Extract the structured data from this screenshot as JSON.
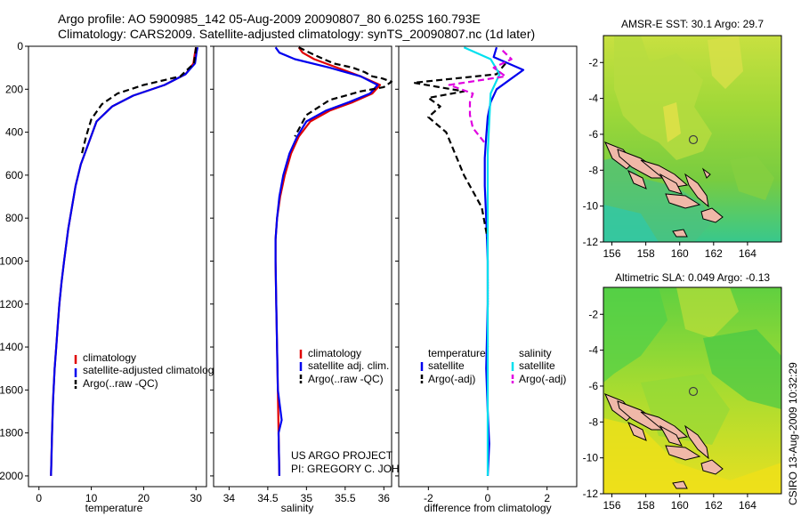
{
  "header": {
    "line1": "Argo profile: AO 5900985_142 05-Aug-2009 20090807_80 6.025S 160.793E",
    "line2": "Climatology: CARS2009. Satellite-adjusted climatology: synTS_20090807.nc (1d later)"
  },
  "footer": {
    "project": "US ARGO PROJECT",
    "pi": "PI: GREGORY C. JOHNSON",
    "credit": "CSIRO 13-Aug-2009 10:32:29"
  },
  "colors": {
    "climatology": "#e00000",
    "satellite": "#0000ee",
    "argo": "#000000",
    "satellite_salinity": "#00e0ee",
    "argo_salinity": "#e000e0",
    "land": "#f0b8a8",
    "marker": "#606060"
  },
  "chart_data": [
    {
      "id": "temperature",
      "type": "line",
      "xlabel": "temperature",
      "xlim": [
        -2,
        32
      ],
      "xticks": [
        0,
        10,
        20,
        30
      ],
      "ylim": [
        2050,
        0
      ],
      "yticks": [
        0,
        200,
        400,
        600,
        800,
        1000,
        1200,
        1400,
        1600,
        1800,
        2000
      ],
      "legend": {
        "placement": "lower-left",
        "entries": [
          "climatology",
          "satellite-adjusted climatology",
          "Argo(..raw -QC)"
        ]
      },
      "series": [
        {
          "name": "climatology",
          "style": "solid",
          "color": "#e00000",
          "x": [
            30,
            29.8,
            29.5,
            28,
            24,
            18,
            14,
            11,
            9.5,
            8,
            7,
            6.3,
            5.6,
            4.8,
            4.3,
            3.9,
            3.6,
            3.3,
            3.0,
            2.7,
            2.5,
            2.3
          ],
          "y": [
            5,
            30,
            80,
            130,
            180,
            230,
            280,
            350,
            450,
            550,
            650,
            750,
            850,
            1000,
            1100,
            1200,
            1300,
            1400,
            1500,
            1650,
            1800,
            2000
          ]
        },
        {
          "name": "satellite-adjusted climatology",
          "style": "solid",
          "color": "#0000ee",
          "x": [
            30.3,
            30.1,
            29.8,
            28,
            24,
            18,
            14,
            11,
            9.5,
            8,
            7,
            6.3,
            5.6,
            4.8,
            4.3,
            3.9,
            3.6,
            3.3,
            3.0,
            2.7,
            2.5,
            2.3
          ],
          "y": [
            5,
            30,
            80,
            130,
            180,
            230,
            280,
            350,
            450,
            550,
            650,
            750,
            850,
            1000,
            1100,
            1200,
            1300,
            1400,
            1500,
            1650,
            1800,
            2000
          ]
        },
        {
          "name": "Argo(..raw -QC)",
          "style": "dashed",
          "color": "#000000",
          "x": [
            30,
            29.9,
            29.6,
            27,
            20,
            15,
            12,
            10,
            9,
            8.2
          ],
          "y": [
            5,
            30,
            80,
            140,
            180,
            220,
            270,
            340,
            420,
            500
          ]
        }
      ]
    },
    {
      "id": "salinity",
      "type": "line",
      "xlabel": "salinity",
      "xlim": [
        33.8,
        36.1
      ],
      "xticks": [
        34,
        34.5,
        35,
        35.5,
        36
      ],
      "ylim": [
        2050,
        0
      ],
      "legend": {
        "placement": "lower-left",
        "entries": [
          "climatology",
          "satellite adj. clim.",
          "Argo(..raw -QC)"
        ]
      },
      "series": [
        {
          "name": "climatology",
          "style": "solid",
          "color": "#e00000",
          "x": [
            34.9,
            34.95,
            35.1,
            35.4,
            35.7,
            35.95,
            35.85,
            35.6,
            35.3,
            35.05,
            34.9,
            34.8,
            34.72,
            34.66,
            34.62,
            34.6,
            34.6,
            34.61,
            34.62,
            34.63,
            34.64,
            34.65
          ],
          "y": [
            5,
            30,
            60,
            100,
            140,
            180,
            220,
            260,
            300,
            350,
            420,
            500,
            600,
            700,
            800,
            900,
            1000,
            1200,
            1400,
            1600,
            1800,
            2000
          ]
        },
        {
          "name": "satellite adj. clim.",
          "style": "solid",
          "color": "#0000ee",
          "x": [
            34.6,
            34.65,
            34.85,
            35.3,
            35.7,
            35.92,
            35.82,
            35.55,
            35.25,
            35.0,
            34.88,
            34.78,
            34.7,
            34.65,
            34.62,
            34.6,
            34.6,
            34.61,
            34.62,
            34.63,
            34.68,
            34.64,
            34.65
          ],
          "y": [
            5,
            30,
            60,
            100,
            140,
            180,
            220,
            260,
            300,
            350,
            420,
            500,
            600,
            700,
            800,
            900,
            1000,
            1200,
            1400,
            1600,
            1740,
            1800,
            2000
          ]
        },
        {
          "name": "Argo(..raw -QC)",
          "style": "dashed",
          "color": "#000000",
          "x": [
            34.9,
            35.1,
            35.35,
            35.6,
            35.75,
            35.85,
            35.98,
            36.1,
            36.0,
            35.7,
            35.3,
            35.0,
            34.85
          ],
          "y": [
            5,
            40,
            80,
            100,
            120,
            140,
            150,
            165,
            190,
            210,
            250,
            320,
            420
          ]
        }
      ]
    },
    {
      "id": "difference",
      "type": "line",
      "xlabel": "difference from climatology",
      "xlim": [
        -3,
        3
      ],
      "xticks": [
        -2,
        0,
        2
      ],
      "ylim": [
        2050,
        0
      ],
      "legend": {
        "placement": "lower-left",
        "temperature_title": "temperature",
        "salinity_title": "salinity",
        "temperature_entries": [
          "satellite",
          "Argo(-adj)"
        ],
        "salinity_entries": [
          "satellite",
          "Argo(-adj)"
        ]
      },
      "series": [
        {
          "name": "temperature satellite",
          "style": "solid",
          "color": "#0000ee",
          "x": [
            0.3,
            0.2,
            1.2,
            0.8,
            0.3,
            0.1,
            0,
            -0.05,
            -0.1,
            -0.1,
            -0.05,
            0,
            0,
            -0.05,
            0,
            0.05,
            0
          ],
          "y": [
            5,
            50,
            110,
            150,
            200,
            260,
            330,
            420,
            520,
            650,
            800,
            1000,
            1200,
            1500,
            1700,
            1850,
            2000
          ]
        },
        {
          "name": "temperature Argo(-adj)",
          "style": "dashed",
          "color": "#000000",
          "x": [
            0.6,
            0.3,
            -2.5,
            -0.8,
            -2.0,
            -1.6,
            -2.0,
            -1.4,
            -1.1,
            -0.8,
            -0.2,
            0.0
          ],
          "y": [
            80,
            130,
            170,
            210,
            240,
            280,
            330,
            400,
            500,
            600,
            750,
            900
          ]
        },
        {
          "name": "salinity satellite",
          "style": "solid",
          "color": "#00e0ee",
          "x": [
            -0.8,
            0.1,
            0.4,
            0.1,
            0.05,
            0,
            0,
            0,
            0,
            0,
            0,
            0
          ],
          "y": [
            5,
            60,
            130,
            220,
            350,
            500,
            700,
            1000,
            1300,
            1600,
            1800,
            2000
          ]
        },
        {
          "name": "salinity Argo(-adj)",
          "style": "dashed",
          "color": "#e000e0",
          "x": [
            0.5,
            0.8,
            0.2,
            0.6,
            -1.3,
            -0.5,
            -0.6,
            -0.6,
            -0.5,
            -0.1
          ],
          "y": [
            20,
            60,
            100,
            140,
            180,
            220,
            260,
            320,
            380,
            450
          ]
        }
      ],
      "annotation": {
        "x": [
          0,
          0,
          0.02,
          0.02,
          0,
          0.02
        ],
        "y": [
          900,
          1000,
          1100,
          1200,
          1300,
          1400
        ]
      }
    }
  ],
  "maps": [
    {
      "id": "sst-map",
      "title": "AMSR-E SST: 30.1 Argo: 29.7",
      "xticks": [
        "156",
        "158",
        "160",
        "162",
        "164"
      ],
      "yticks": [
        "-2",
        "-4",
        "-6",
        "-8",
        "-10",
        "-12"
      ],
      "xlim": [
        155.5,
        166
      ],
      "ylim": [
        -12,
        -0.5
      ],
      "marker": {
        "lon": 160.793,
        "lat": -6.025
      }
    },
    {
      "id": "sla-map",
      "title": "Altimetric SLA: 0.049 Argo: -0.13",
      "xticks": [
        "156",
        "158",
        "160",
        "162",
        "164"
      ],
      "yticks": [
        "-2",
        "-4",
        "-6",
        "-8",
        "-10",
        "-12"
      ],
      "xlim": [
        155.5,
        166
      ],
      "ylim": [
        -12,
        -0.5
      ],
      "marker": {
        "lon": 160.793,
        "lat": -6.025
      }
    }
  ]
}
